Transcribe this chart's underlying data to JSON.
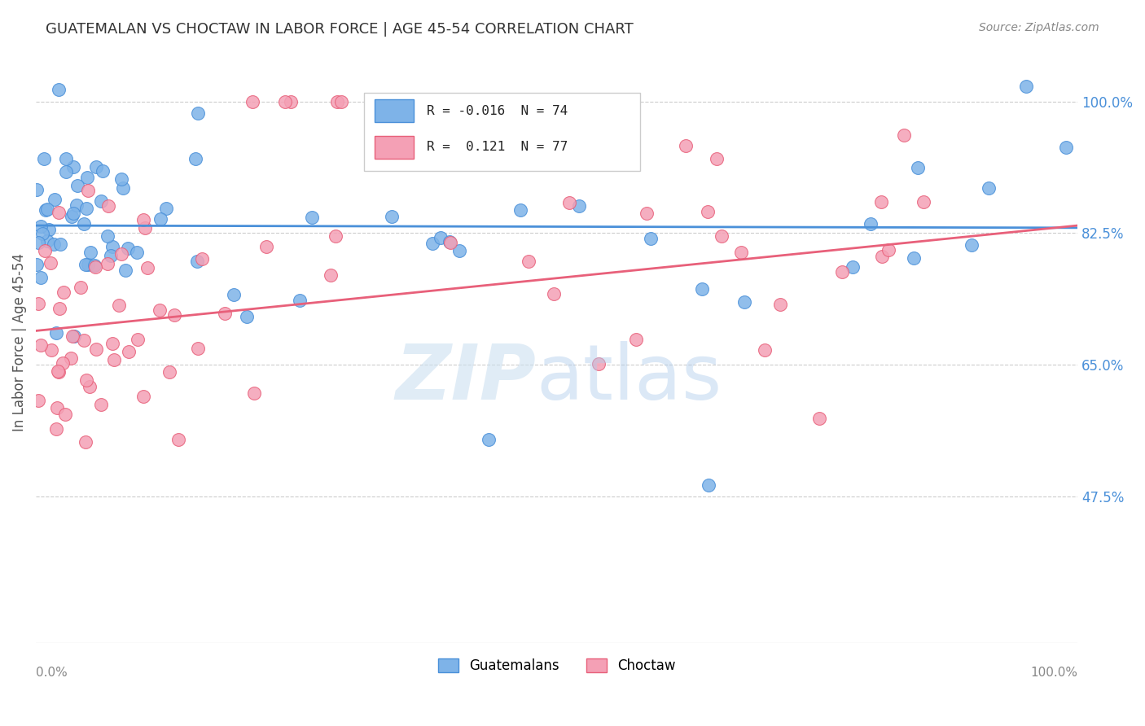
{
  "title": "GUATEMALAN VS CHOCTAW IN LABOR FORCE | AGE 45-54 CORRELATION CHART",
  "source": "Source: ZipAtlas.com",
  "ylabel": "In Labor Force | Age 45-54",
  "xlim": [
    0.0,
    1.0
  ],
  "ylim": [
    0.28,
    1.08
  ],
  "yticks": [
    0.475,
    0.65,
    0.825,
    1.0
  ],
  "ytick_labels": [
    "47.5%",
    "65.0%",
    "82.5%",
    "100.0%"
  ],
  "blue_R": "-0.016",
  "blue_N": "74",
  "pink_R": "0.121",
  "pink_N": "77",
  "blue_color": "#7EB3E8",
  "pink_color": "#F4A0B5",
  "blue_line_color": "#4A90D9",
  "pink_line_color": "#E8607A",
  "legend_guatemalans": "Guatemalans",
  "legend_choctaw": "Choctaw",
  "blue_trend_start": 0.835,
  "blue_trend_end": 0.832,
  "pink_trend_start": 0.695,
  "pink_trend_end": 0.835
}
